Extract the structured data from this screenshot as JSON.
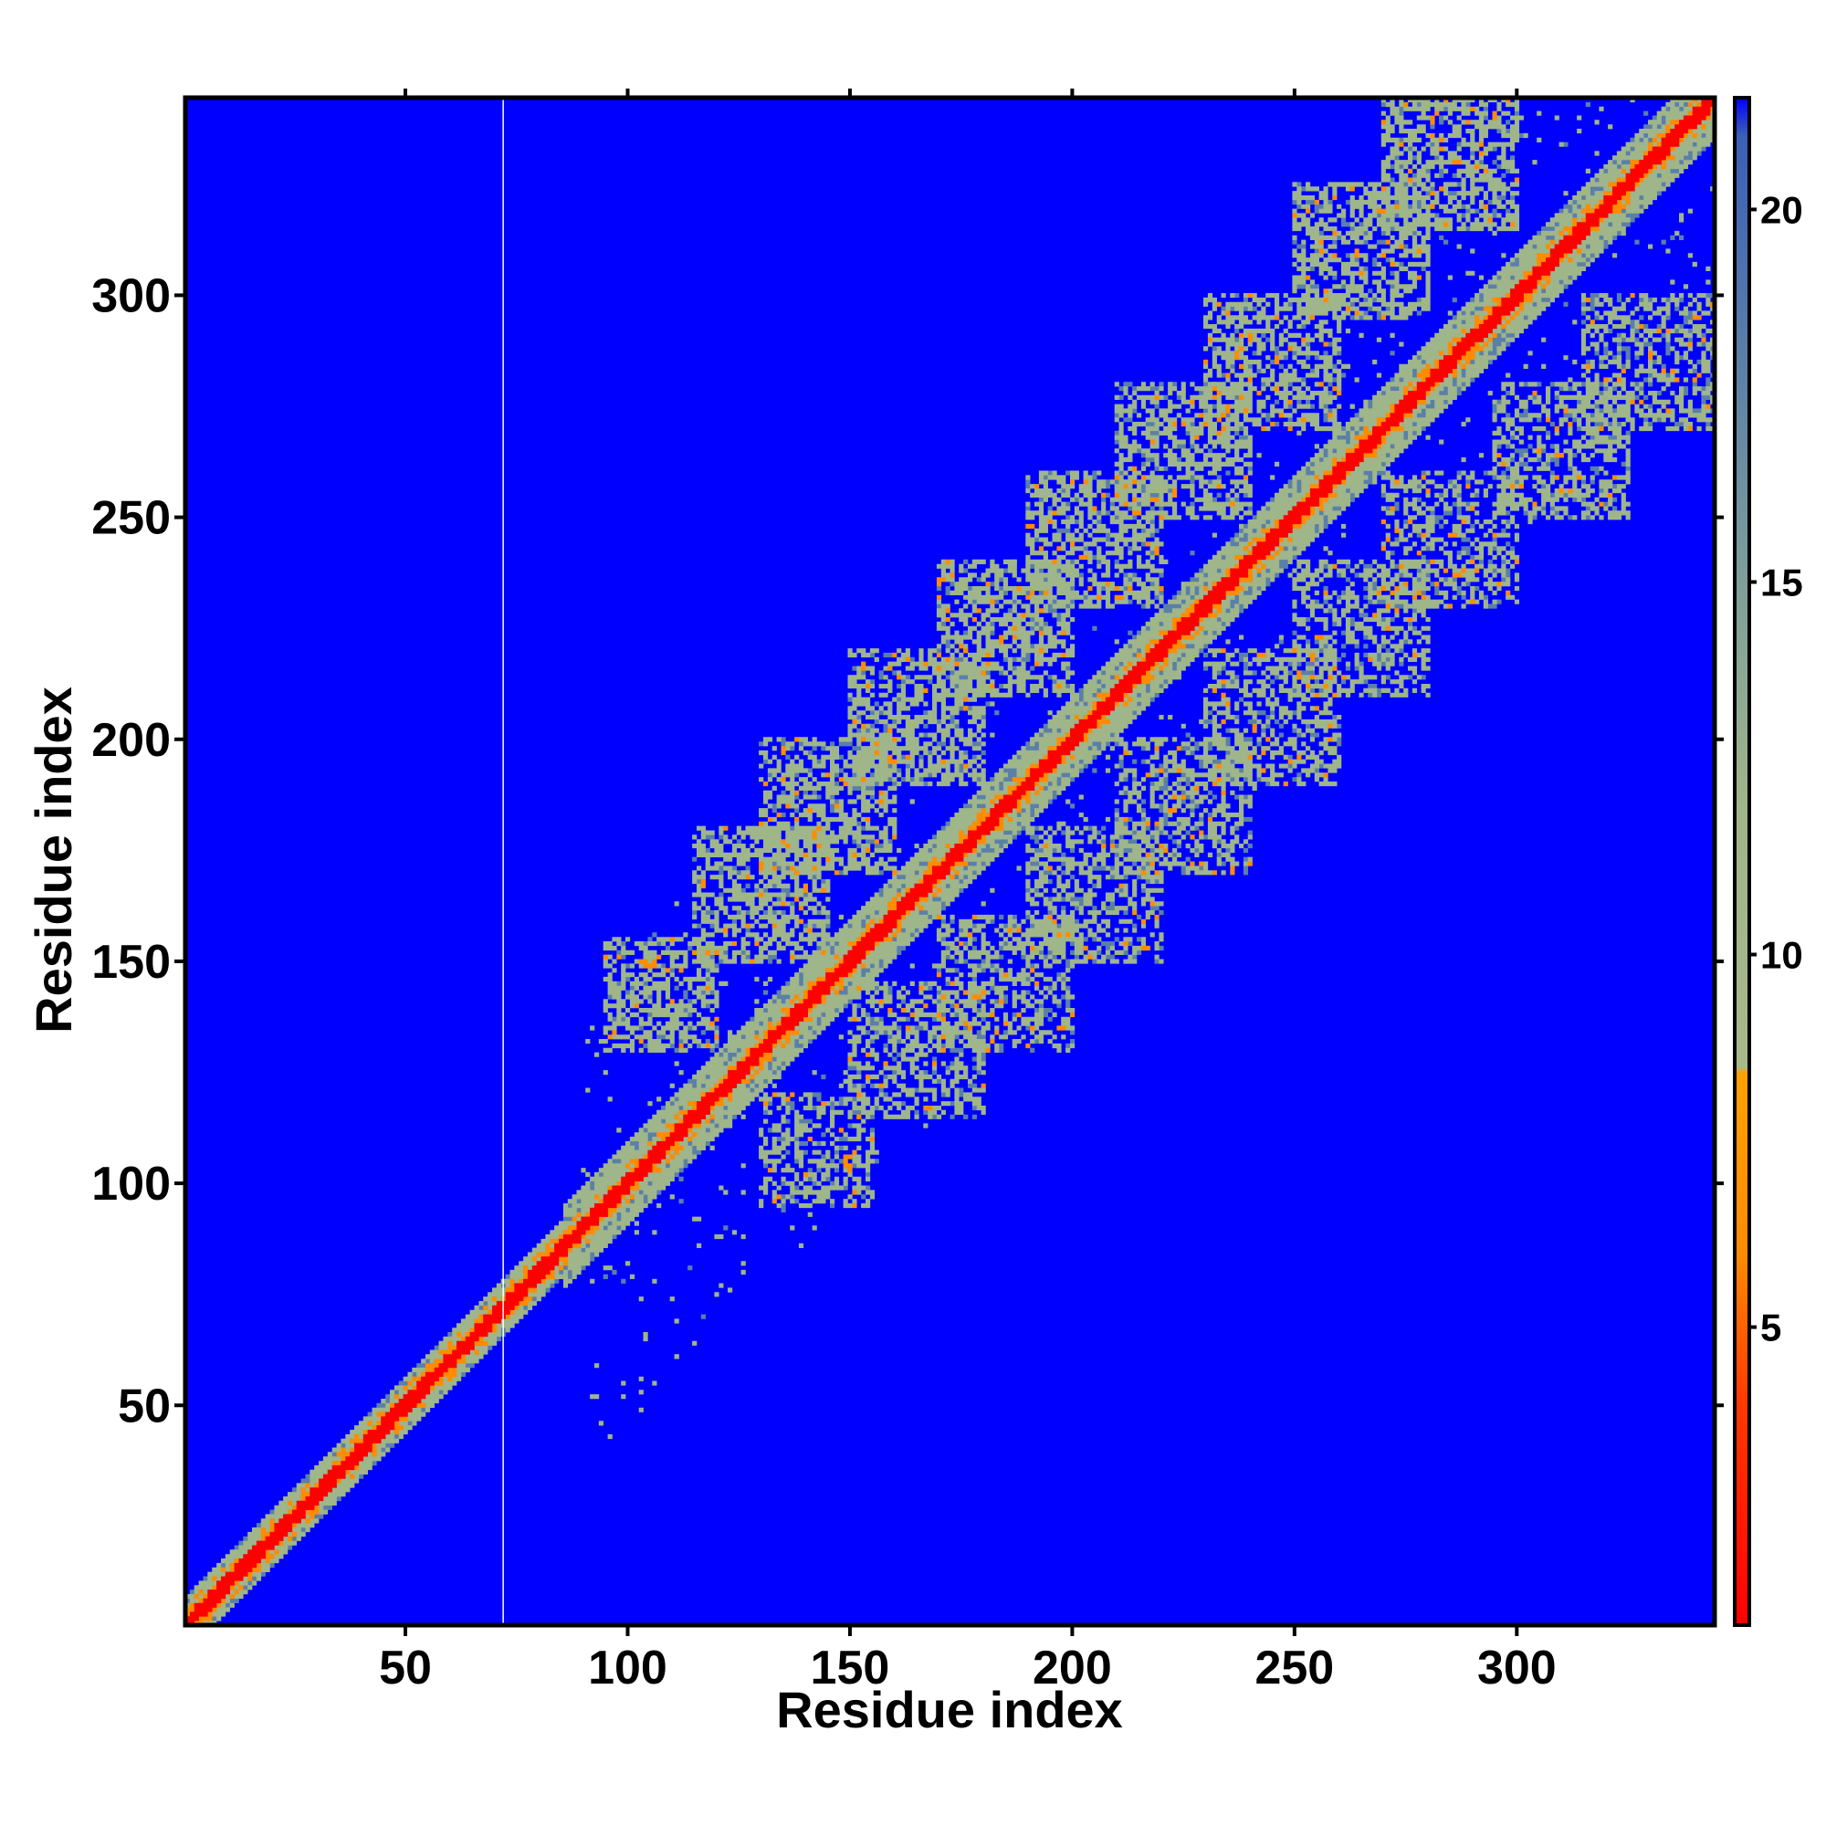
{
  "chart_data": {
    "type": "heatmap",
    "title": "",
    "xlabel": "Residue index",
    "ylabel": "Residue index",
    "xlim": [
      1,
      344
    ],
    "ylim": [
      1,
      344
    ],
    "x_ticks": [
      50,
      100,
      150,
      200,
      250,
      300
    ],
    "y_ticks": [
      50,
      100,
      150,
      200,
      250,
      300
    ],
    "n_residues": 344,
    "diagonal_contact_band_width": 9,
    "colorbar": {
      "range": [
        1,
        21.5
      ],
      "ticks": [
        5,
        10,
        15,
        20
      ],
      "colors": {
        "very_close": "#ff0000",
        "close": "#ff8c00",
        "medium": "#9fb58a",
        "far": "#5a7fa8",
        "background": "#0000ff"
      }
    },
    "off_diagonal_blocks": [
      {
        "x": [
          95,
          120
        ],
        "y": [
          130,
          155
        ]
      },
      {
        "x": [
          115,
          145
        ],
        "y": [
          150,
          180
        ]
      },
      {
        "x": [
          130,
          160
        ],
        "y": [
          170,
          200
        ]
      },
      {
        "x": [
          150,
          180
        ],
        "y": [
          190,
          220
        ]
      },
      {
        "x": [
          170,
          200
        ],
        "y": [
          210,
          240
        ]
      },
      {
        "x": [
          190,
          220
        ],
        "y": [
          230,
          260
        ]
      },
      {
        "x": [
          210,
          240
        ],
        "y": [
          250,
          280
        ]
      },
      {
        "x": [
          230,
          260
        ],
        "y": [
          270,
          300
        ]
      },
      {
        "x": [
          250,
          280
        ],
        "y": [
          295,
          325
        ]
      },
      {
        "x": [
          270,
          300
        ],
        "y": [
          315,
          344
        ]
      }
    ],
    "gap_column": 72
  }
}
